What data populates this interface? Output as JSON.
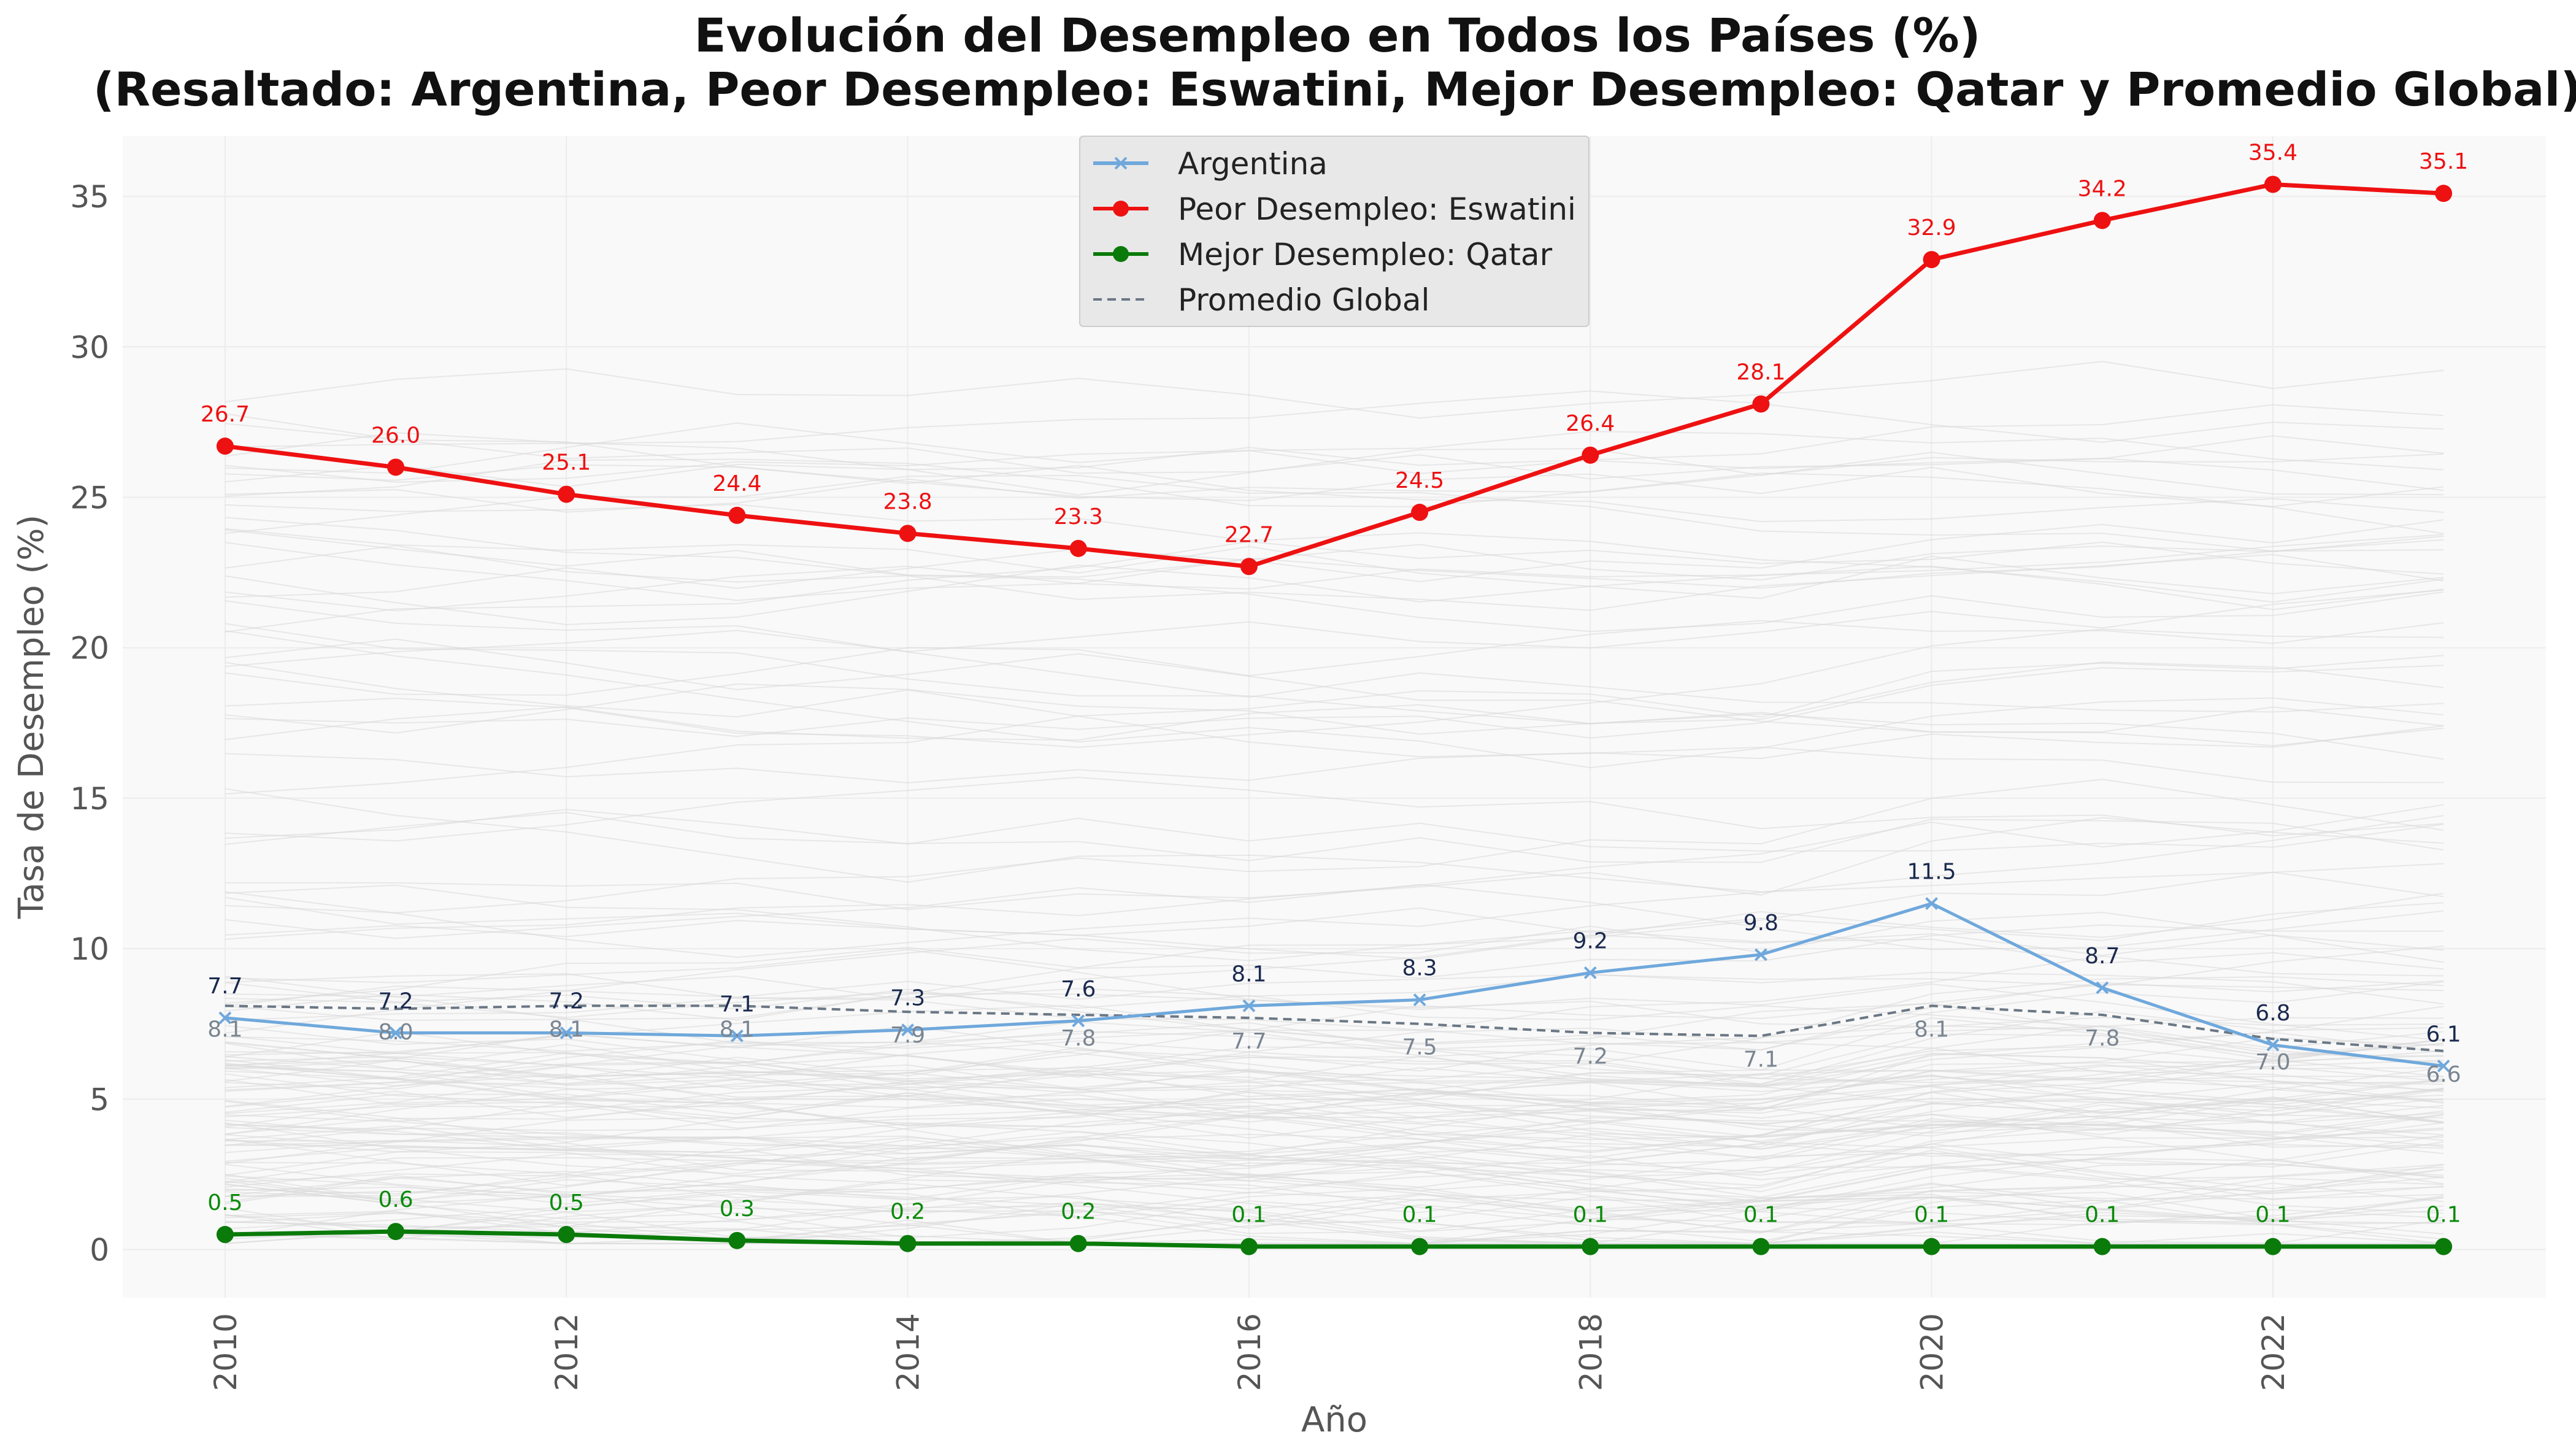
{
  "chart_data": {
    "type": "line",
    "title_line1": "Evolución del Desempleo en Todos los Países (%)",
    "title_line2": "(Resaltado: Argentina, Peor Desempleo: Eswatini, Mejor Desempleo: Qatar y Promedio Global)",
    "xlabel": "Año",
    "ylabel": "Tasa de Desempleo (%)",
    "xlim": [
      2009.4,
      2023.6
    ],
    "ylim": [
      -1.6,
      37.0
    ],
    "x": [
      2010,
      2011,
      2012,
      2013,
      2014,
      2015,
      2016,
      2017,
      2018,
      2019,
      2020,
      2021,
      2022,
      2023
    ],
    "x_ticks": [
      2010,
      2012,
      2014,
      2016,
      2018,
      2020,
      2022
    ],
    "y_ticks": [
      0,
      5,
      10,
      15,
      20,
      25,
      30,
      35
    ],
    "grid": true,
    "legend_position": "top-center",
    "series": [
      {
        "name": "Argentina",
        "color": "#6fa8dc",
        "marker": "x",
        "values": [
          7.7,
          7.2,
          7.2,
          7.1,
          7.3,
          7.6,
          8.1,
          8.3,
          9.2,
          9.8,
          11.5,
          8.7,
          6.8,
          6.1
        ],
        "labels": [
          "7.7",
          "7.2",
          "7.2",
          "7.1",
          "7.3",
          "7.6",
          "8.1",
          "8.3",
          "9.2",
          "9.8",
          "11.5",
          "8.7",
          "6.8",
          "6.1"
        ],
        "label_color": "#1a2a4f"
      },
      {
        "name": "Peor Desempleo: Eswatini",
        "color": "#ee1111",
        "marker": "o",
        "values": [
          26.7,
          26.0,
          25.1,
          24.4,
          23.8,
          23.3,
          22.7,
          24.5,
          26.4,
          28.1,
          32.9,
          34.2,
          35.4,
          35.1
        ],
        "labels": [
          "26.7",
          "26.0",
          "25.1",
          "24.4",
          "23.8",
          "23.3",
          "22.7",
          "24.5",
          "26.4",
          "28.1",
          "32.9",
          "34.2",
          "35.4",
          "35.1"
        ],
        "label_color": "#ee1111"
      },
      {
        "name": "Mejor Desempleo: Qatar",
        "color": "#0a7a0a",
        "marker": "o",
        "values": [
          0.5,
          0.6,
          0.5,
          0.3,
          0.2,
          0.2,
          0.1,
          0.1,
          0.1,
          0.1,
          0.1,
          0.1,
          0.1,
          0.1
        ],
        "labels": [
          "0.5",
          "0.6",
          "0.5",
          "0.3",
          "0.2",
          "0.2",
          "0.1",
          "0.1",
          "0.1",
          "0.1",
          "0.1",
          "0.1",
          "0.1",
          "0.1"
        ],
        "label_color": "#0a8a0a"
      },
      {
        "name": "Promedio Global",
        "color": "#6b7785",
        "dashed": true,
        "values": [
          8.1,
          8.0,
          8.1,
          8.1,
          7.9,
          7.8,
          7.7,
          7.5,
          7.2,
          7.1,
          8.1,
          7.8,
          7.0,
          6.6
        ],
        "labels": [
          "8.1",
          "8.0",
          "8.1",
          "8.1",
          "7.9",
          "7.8",
          "7.7",
          "7.5",
          "7.2",
          "7.1",
          "8.1",
          "7.8",
          "7.0",
          "6.6"
        ],
        "label_color": "#7a8591"
      }
    ]
  }
}
